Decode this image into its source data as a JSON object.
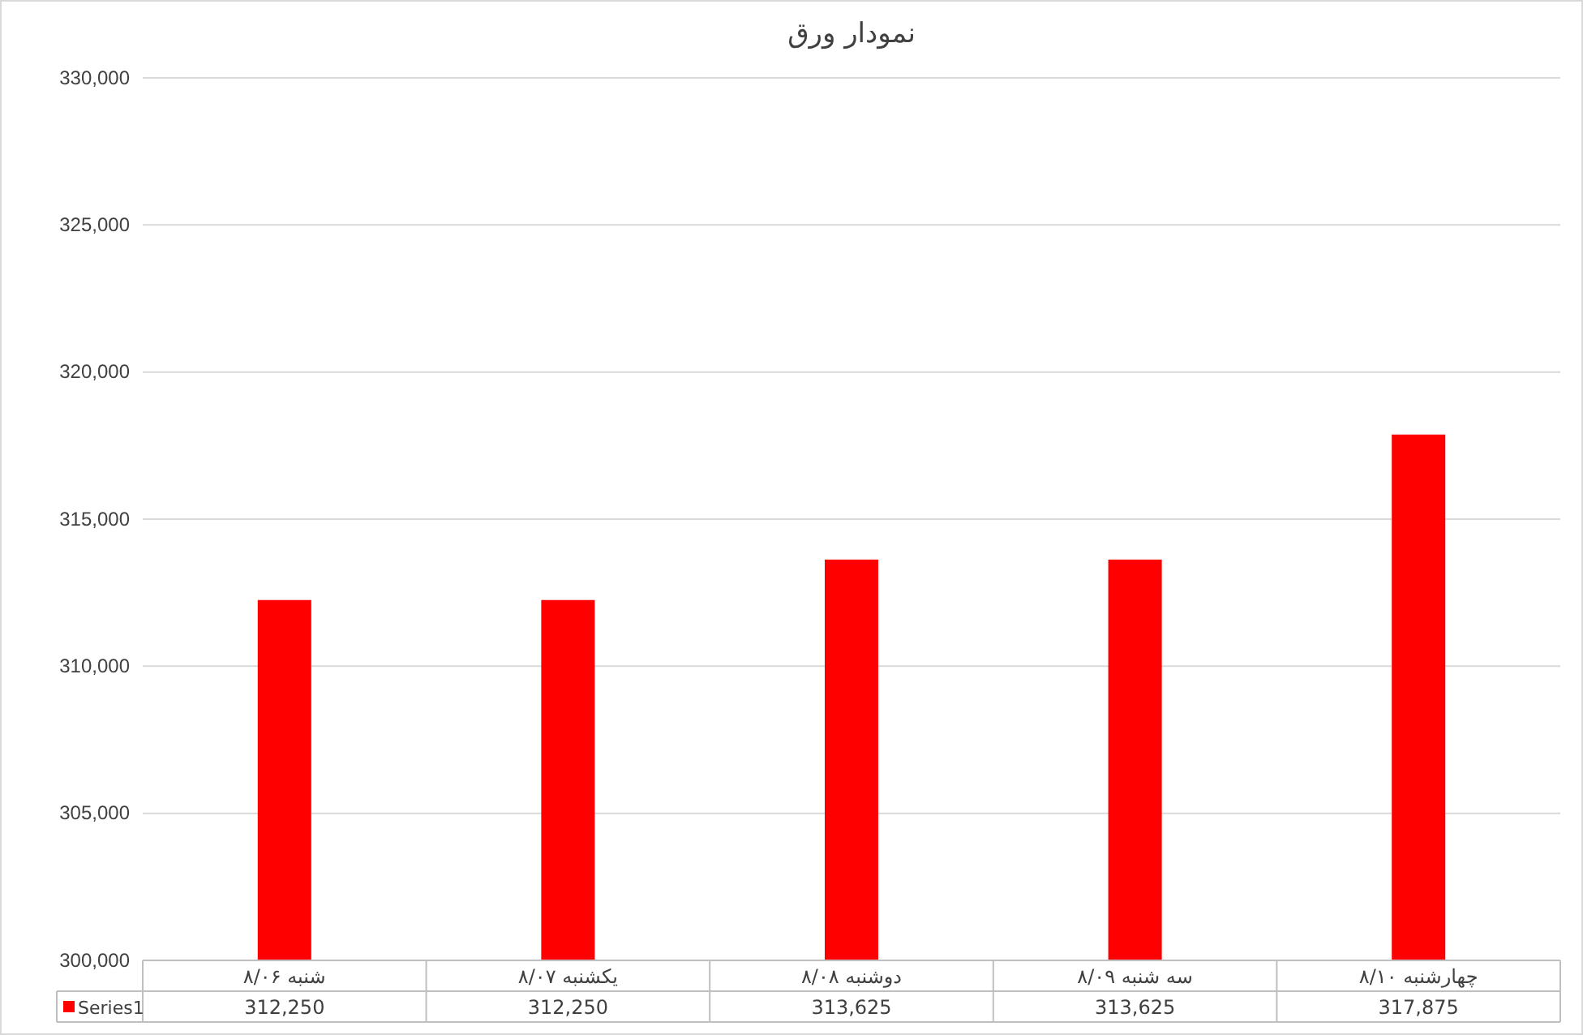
{
  "chart_data": {
    "type": "bar",
    "title": "نمودار ورق",
    "categories": [
      "شنبه ۸/۰۶",
      "یکشنبه ۸/۰۷",
      "دوشنبه ۸/۰۸",
      "سه شنبه ۸/۰۹",
      "چهارشنبه ۸/۱۰"
    ],
    "series": [
      {
        "name": "Series1",
        "color": "#ff0000",
        "values": [
          312250,
          312250,
          313625,
          313625,
          317875
        ],
        "value_labels": [
          "312,250",
          "312,250",
          "313,625",
          "313,625",
          "317,875"
        ]
      }
    ],
    "ylim": [
      300000,
      330000
    ],
    "yticks": [
      {
        "value": 300000,
        "label": "300,000"
      },
      {
        "value": 305000,
        "label": "305,000"
      },
      {
        "value": 310000,
        "label": "310,000"
      },
      {
        "value": 315000,
        "label": "315,000"
      },
      {
        "value": 320000,
        "label": "320,000"
      },
      {
        "value": 325000,
        "label": "325,000"
      },
      {
        "value": 330000,
        "label": "330,000"
      }
    ],
    "grid": "y"
  }
}
